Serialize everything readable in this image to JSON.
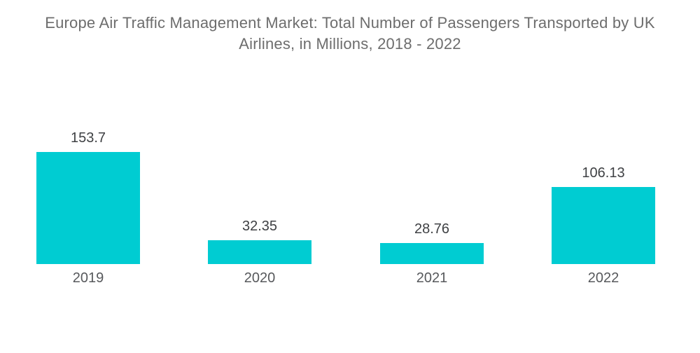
{
  "chart_data": {
    "type": "bar",
    "title": "Europe Air Traffic Management Market: Total Number of Passengers Transported by UK Airlines, in Millions, 2018 - 2022",
    "categories": [
      "2019",
      "2020",
      "2021",
      "2022"
    ],
    "values": [
      153.7,
      32.35,
      28.76,
      106.13
    ],
    "value_labels": [
      "153.7",
      "32.35",
      "28.76",
      "106.13"
    ],
    "ylabel": "",
    "xlabel": "",
    "ylim": [
      0,
      153.7
    ],
    "grid": false,
    "legend": false,
    "colors": {
      "bar": "#00ccd2",
      "title_text": "#6d6d6d",
      "value_text": "#3f4144",
      "category_text": "#57595c",
      "background": "#ffffff"
    }
  }
}
